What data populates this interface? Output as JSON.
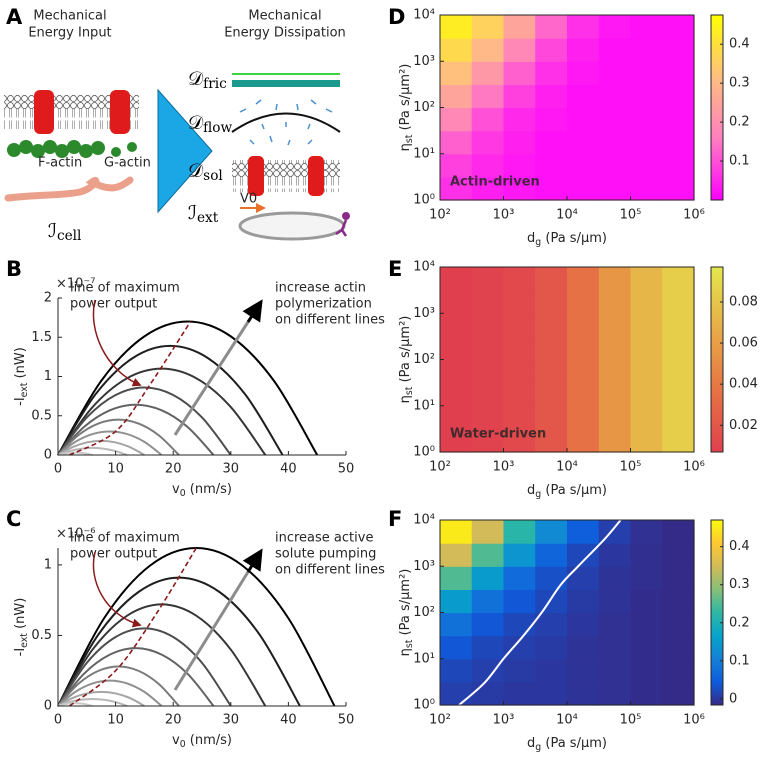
{
  "diagram": {
    "panel": "A",
    "input_title": [
      "Mechanical",
      "Energy Input"
    ],
    "dissipation_title": [
      "Mechanical",
      "Energy Dissipation"
    ],
    "f_actin": "F-actin",
    "g_actin": "G-actin",
    "velocity": "V0",
    "terms": [
      {
        "main": "ℐ",
        "sub": "cell"
      },
      {
        "main": "𝒟",
        "sub": "fric"
      },
      {
        "main": "𝒟",
        "sub": "flow"
      },
      {
        "main": "𝒟",
        "sub": "sol"
      },
      {
        "main": "ℐ",
        "sub": "ext"
      }
    ]
  },
  "chart_data": [
    {
      "type": "line",
      "panel": "B",
      "xlabel": {
        "main": "v",
        "sub": "0",
        "rest": " (nm/s)"
      },
      "ylabel": {
        "main": "-I",
        "sub": "ext",
        "rest": " (nW)"
      },
      "y_multiplier": "×10⁻⁷",
      "xlim": [
        0,
        50
      ],
      "ylim": [
        0,
        2
      ],
      "xticks": [
        0,
        10,
        20,
        30,
        40,
        50
      ],
      "yticks": [
        0,
        0.5,
        1,
        1.5,
        2
      ],
      "annotations": {
        "max_line": [
          "line of maximum",
          "power output"
        ],
        "increase": [
          "increase actin",
          "polymerization",
          "on different lines"
        ]
      },
      "series": [
        {
          "color": "#000000",
          "x": [
            0,
            7.5,
            15,
            22.5,
            30,
            37.5,
            45
          ],
          "values": [
            0,
            0.944,
            1.511,
            1.7,
            1.511,
            0.944,
            0
          ]
        },
        {
          "color": "#1e1e1e",
          "x": [
            0,
            6.5,
            13,
            19.5,
            26,
            32.5,
            39
          ],
          "values": [
            0,
            0.772,
            1.236,
            1.39,
            1.236,
            0.772,
            0
          ]
        },
        {
          "color": "#363636",
          "x": [
            0,
            6,
            12,
            18,
            24,
            30,
            36
          ],
          "values": [
            0,
            0.611,
            0.978,
            1.1,
            0.978,
            0.611,
            0
          ]
        },
        {
          "color": "#4d4d4d",
          "x": [
            0,
            5,
            10,
            15,
            20,
            25,
            30
          ],
          "values": [
            0,
            0.478,
            0.764,
            0.86,
            0.764,
            0.478,
            0
          ]
        },
        {
          "color": "#636363",
          "x": [
            0,
            4.5,
            9,
            13.5,
            18,
            22.5,
            27
          ],
          "values": [
            0,
            0.356,
            0.569,
            0.64,
            0.569,
            0.356,
            0
          ]
        },
        {
          "color": "#7a7a7a",
          "x": [
            0,
            3.5,
            7,
            10.5,
            14,
            17.5,
            21
          ],
          "values": [
            0,
            0.25,
            0.4,
            0.45,
            0.4,
            0.25,
            0
          ]
        },
        {
          "color": "#909090",
          "x": [
            0,
            3,
            6,
            9,
            12,
            15,
            18
          ],
          "values": [
            0,
            0.167,
            0.267,
            0.3,
            0.267,
            0.167,
            0
          ]
        },
        {
          "color": "#a5a5a5",
          "x": [
            0,
            2.5,
            5,
            7.5,
            10,
            12.5,
            15
          ],
          "values": [
            0,
            0.1,
            0.16,
            0.18,
            0.16,
            0.1,
            0
          ]
        },
        {
          "color": "#b8b8b8",
          "x": [
            0,
            2,
            4,
            6,
            8,
            10,
            12
          ],
          "values": [
            0,
            0.05,
            0.08,
            0.09,
            0.08,
            0.05,
            0
          ]
        },
        {
          "color": "#cacaca",
          "x": [
            0,
            1,
            2,
            3,
            4,
            5,
            6
          ],
          "values": [
            0,
            0.017,
            0.027,
            0.03,
            0.027,
            0.017,
            0
          ]
        },
        {
          "color": "#8b1a1a",
          "dashed": true,
          "x": [
            2,
            10,
            16,
            23
          ],
          "values": [
            0,
            0.3,
            0.9,
            1.7
          ]
        }
      ]
    },
    {
      "type": "line",
      "panel": "C",
      "xlabel": {
        "main": "v",
        "sub": "0",
        "rest": " (nm/s)"
      },
      "ylabel": {
        "main": "-I",
        "sub": "ext",
        "rest": " (nW)"
      },
      "y_multiplier": "×10⁻⁶",
      "xlim": [
        0,
        50
      ],
      "ylim": [
        0,
        1.12
      ],
      "xticks": [
        0,
        10,
        20,
        30,
        40,
        50
      ],
      "yticks": [
        0,
        0.5,
        1
      ],
      "annotations": {
        "max_line": [
          "line of maximum",
          "power output"
        ],
        "increase": [
          "increase active",
          "solute pumping",
          "on different lines"
        ]
      },
      "series": [
        {
          "color": "#000000",
          "x": [
            0,
            8,
            16,
            24,
            32,
            40,
            48
          ],
          "values": [
            0,
            0.622,
            0.996,
            1.12,
            0.996,
            0.622,
            0
          ]
        },
        {
          "color": "#1e1e1e",
          "x": [
            0,
            7,
            14,
            21,
            28,
            35,
            42
          ],
          "values": [
            0,
            0.506,
            0.809,
            0.91,
            0.809,
            0.506,
            0
          ]
        },
        {
          "color": "#363636",
          "x": [
            0,
            6,
            12,
            18,
            24,
            30,
            36
          ],
          "values": [
            0,
            0.4,
            0.64,
            0.72,
            0.64,
            0.4,
            0
          ]
        },
        {
          "color": "#4d4d4d",
          "x": [
            0,
            5,
            10,
            15,
            20,
            25,
            30
          ],
          "values": [
            0,
            0.306,
            0.489,
            0.55,
            0.489,
            0.306,
            0
          ]
        },
        {
          "color": "#636363",
          "x": [
            0,
            4.5,
            9,
            13.5,
            18,
            22.5,
            27
          ],
          "values": [
            0,
            0.228,
            0.364,
            0.41,
            0.364,
            0.228,
            0
          ]
        },
        {
          "color": "#7a7a7a",
          "x": [
            0,
            3.5,
            7,
            10.5,
            14,
            17.5,
            21
          ],
          "values": [
            0,
            0.156,
            0.249,
            0.28,
            0.249,
            0.156,
            0
          ]
        },
        {
          "color": "#909090",
          "x": [
            0,
            3,
            6,
            9,
            12,
            15,
            18
          ],
          "values": [
            0,
            0.1,
            0.16,
            0.18,
            0.16,
            0.1,
            0
          ]
        },
        {
          "color": "#a5a5a5",
          "x": [
            0,
            2.5,
            5,
            7.5,
            10,
            12.5,
            15
          ],
          "values": [
            0,
            0.056,
            0.089,
            0.1,
            0.089,
            0.056,
            0
          ]
        },
        {
          "color": "#b8b8b8",
          "x": [
            0,
            2,
            4,
            6,
            8,
            10,
            12
          ],
          "values": [
            0,
            0.028,
            0.044,
            0.05,
            0.044,
            0.028,
            0
          ]
        },
        {
          "color": "#cacaca",
          "x": [
            0,
            1,
            2,
            3,
            4,
            5,
            6
          ],
          "values": [
            0,
            0.011,
            0.018,
            0.02,
            0.018,
            0.011,
            0
          ]
        },
        {
          "color": "#8b1a1a",
          "dashed": true,
          "x": [
            2,
            10,
            17,
            24
          ],
          "values": [
            0,
            0.25,
            0.65,
            1.12
          ]
        }
      ]
    },
    {
      "type": "heatmap",
      "panel": "D",
      "log_x": true,
      "log_y": true,
      "annotation": "Actin-driven",
      "xlabel": {
        "main": "d",
        "sub": "g",
        "rest": " (Pa s/μm)"
      },
      "ylabel": {
        "main": "η",
        "sub": "st",
        "rest": " (Pa s/μm²)"
      },
      "xlim": [
        100,
        1000000
      ],
      "ylim": [
        1,
        10000
      ],
      "xticks": [
        {
          "value": 100,
          "label": "10²"
        },
        {
          "value": 1000,
          "label": "10³"
        },
        {
          "value": 10000,
          "label": "10⁴"
        },
        {
          "value": 100000,
          "label": "10⁵"
        },
        {
          "value": 1000000,
          "label": "10⁶"
        }
      ],
      "yticks": [
        {
          "value": 1,
          "label": "10⁰"
        },
        {
          "value": 10,
          "label": "10¹"
        },
        {
          "value": 100,
          "label": "10²"
        },
        {
          "value": 1000,
          "label": "10³"
        },
        {
          "value": 10000,
          "label": "10⁴"
        }
      ],
      "xbins": [
        100,
        316,
        1000,
        3162,
        10000,
        31623,
        100000,
        316228,
        1000000
      ],
      "ybins": [
        1,
        3.16,
        10,
        31.6,
        100,
        316,
        1000,
        3162,
        10000
      ],
      "values": [
        [
          0.06,
          0.04,
          0.03,
          0.02,
          0.02,
          0.02,
          0.02,
          0.02
        ],
        [
          0.08,
          0.05,
          0.03,
          0.02,
          0.02,
          0.02,
          0.02,
          0.02
        ],
        [
          0.12,
          0.07,
          0.04,
          0.02,
          0.02,
          0.02,
          0.02,
          0.02
        ],
        [
          0.18,
          0.1,
          0.05,
          0.03,
          0.02,
          0.02,
          0.02,
          0.02
        ],
        [
          0.25,
          0.15,
          0.08,
          0.04,
          0.02,
          0.02,
          0.02,
          0.02
        ],
        [
          0.32,
          0.22,
          0.12,
          0.06,
          0.03,
          0.02,
          0.02,
          0.02
        ],
        [
          0.38,
          0.3,
          0.18,
          0.09,
          0.04,
          0.02,
          0.02,
          0.02
        ],
        [
          0.43,
          0.36,
          0.25,
          0.13,
          0.06,
          0.03,
          0.02,
          0.02
        ]
      ],
      "clim": [
        0,
        0.475
      ],
      "cticks": [
        0.1,
        0.2,
        0.3,
        0.4
      ],
      "colormap": [
        "#ff00ff",
        "#ff7fbf",
        "#ffbf80",
        "#ffff00"
      ]
    },
    {
      "type": "heatmap",
      "panel": "E",
      "log_x": true,
      "log_y": true,
      "annotation": "Water-driven",
      "xlabel": {
        "main": "d",
        "sub": "g",
        "rest": " (Pa s/μm)"
      },
      "ylabel": {
        "main": "η",
        "sub": "st",
        "rest": " (Pa s/μm²)"
      },
      "xlim": [
        100,
        1000000
      ],
      "ylim": [
        1,
        10000
      ],
      "xticks": [
        {
          "value": 100,
          "label": "10²"
        },
        {
          "value": 1000,
          "label": "10³"
        },
        {
          "value": 10000,
          "label": "10⁴"
        },
        {
          "value": 100000,
          "label": "10⁵"
        },
        {
          "value": 1000000,
          "label": "10⁶"
        }
      ],
      "yticks": [
        {
          "value": 1,
          "label": "10⁰"
        },
        {
          "value": 10,
          "label": "10¹"
        },
        {
          "value": 100,
          "label": "10²"
        },
        {
          "value": 1000,
          "label": "10³"
        },
        {
          "value": 10000,
          "label": "10⁴"
        }
      ],
      "xbins": [
        100,
        316,
        1000,
        3162,
        10000,
        31623,
        100000,
        316228,
        1000000
      ],
      "ybins": [
        1,
        3.16,
        10,
        31.6,
        100,
        316,
        1000,
        3162,
        10000
      ],
      "values": [
        [
          0.007,
          0.009,
          0.012,
          0.02,
          0.035,
          0.055,
          0.072,
          0.084
        ],
        [
          0.007,
          0.009,
          0.012,
          0.02,
          0.035,
          0.055,
          0.072,
          0.084
        ],
        [
          0.007,
          0.009,
          0.012,
          0.02,
          0.035,
          0.055,
          0.072,
          0.084
        ],
        [
          0.007,
          0.009,
          0.012,
          0.02,
          0.035,
          0.055,
          0.072,
          0.084
        ],
        [
          0.007,
          0.009,
          0.012,
          0.02,
          0.035,
          0.055,
          0.072,
          0.084
        ],
        [
          0.007,
          0.009,
          0.012,
          0.02,
          0.035,
          0.055,
          0.072,
          0.084
        ],
        [
          0.007,
          0.009,
          0.012,
          0.02,
          0.035,
          0.055,
          0.072,
          0.084
        ],
        [
          0.007,
          0.009,
          0.012,
          0.02,
          0.035,
          0.055,
          0.072,
          0.084
        ]
      ],
      "clim": [
        0.007,
        0.097
      ],
      "cticks": [
        0.02,
        0.04,
        0.06,
        0.08
      ],
      "colormap": [
        "#e0404e",
        "#e67444",
        "#e8ac48",
        "#e4e84c"
      ]
    },
    {
      "type": "heatmap",
      "panel": "F",
      "log_x": true,
      "log_y": true,
      "xlabel": {
        "main": "d",
        "sub": "g",
        "rest": " (Pa s/μm)"
      },
      "ylabel": {
        "main": "η",
        "sub": "st",
        "rest": " (Pa s/μm²)"
      },
      "xlim": [
        100,
        1000000
      ],
      "ylim": [
        1,
        10000
      ],
      "xticks": [
        {
          "value": 100,
          "label": "10²"
        },
        {
          "value": 1000,
          "label": "10³"
        },
        {
          "value": 10000,
          "label": "10⁴"
        },
        {
          "value": 100000,
          "label": "10⁵"
        },
        {
          "value": 1000000,
          "label": "10⁶"
        }
      ],
      "yticks": [
        {
          "value": 1,
          "label": "10⁰"
        },
        {
          "value": 10,
          "label": "10¹"
        },
        {
          "value": 100,
          "label": "10²"
        },
        {
          "value": 1000,
          "label": "10³"
        },
        {
          "value": 10000,
          "label": "10⁴"
        }
      ],
      "xbins": [
        100,
        316,
        1000,
        3162,
        10000,
        31623,
        100000,
        316228,
        1000000
      ],
      "ybins": [
        1,
        3.16,
        10,
        31.6,
        100,
        316,
        1000,
        3162,
        10000
      ],
      "values": [
        [
          0.01,
          0.005,
          0,
          0,
          -0.005,
          -0.008,
          -0.012,
          -0.015
        ],
        [
          0.02,
          0.01,
          0.005,
          0,
          -0.005,
          -0.008,
          -0.012,
          -0.015
        ],
        [
          0.04,
          0.02,
          0.01,
          0.005,
          -0.005,
          -0.008,
          -0.012,
          -0.015
        ],
        [
          0.08,
          0.04,
          0.02,
          0.01,
          0,
          -0.008,
          -0.012,
          -0.015
        ],
        [
          0.15,
          0.08,
          0.04,
          0.02,
          0.005,
          -0.005,
          -0.012,
          -0.015
        ],
        [
          0.25,
          0.15,
          0.07,
          0.03,
          0.01,
          -0.005,
          -0.01,
          -0.015
        ],
        [
          0.35,
          0.25,
          0.14,
          0.06,
          0.02,
          0,
          -0.01,
          -0.015
        ],
        [
          0.45,
          0.35,
          0.22,
          0.12,
          0.05,
          0.01,
          -0.008,
          -0.015
        ]
      ],
      "clim": [
        -0.016,
        0.47
      ],
      "cticks": [
        0,
        0.1,
        0.2,
        0.3,
        0.4
      ],
      "colormap": [
        "#352a87",
        "#0f5cdd",
        "#1481d6",
        "#06a4ca",
        "#2eb7a4",
        "#87bf77",
        "#d1bb59",
        "#fec832",
        "#f9fb0e"
      ],
      "contour": {
        "color": "#ffffff",
        "x": [
          200,
          500,
          1000,
          2000,
          4000,
          8000,
          15000,
          40000,
          70000
        ],
        "values": [
          1,
          3,
          10,
          30,
          100,
          400,
          1000,
          4000,
          10000
        ]
      }
    }
  ]
}
